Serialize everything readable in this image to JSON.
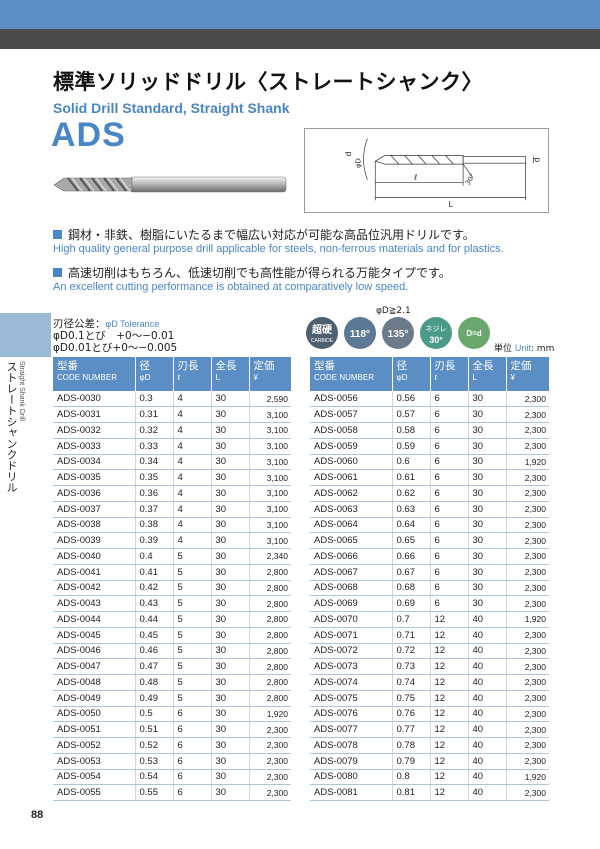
{
  "header": {
    "title_jp": "標準ソリッドドリル〈ストレートシャンク〉",
    "title_en": "Solid Drill Standard, Straight Shank",
    "code": "ADS"
  },
  "diagram": {
    "labels": [
      "d",
      "φD",
      "ℓ",
      "30°",
      "d",
      "L"
    ]
  },
  "features": [
    {
      "jp": "鋼材・非鉄、樹脂にいたるまで幅広い対応が可能な高品位汎用ドリルです。",
      "en": "High quality general purpose drill applicable for steels, non-ferrous materials and for plastics."
    },
    {
      "jp": "高速切削はもちろん、低速切削でも高性能が得られる万能タイプです。",
      "en": "An excellent cutting performance is obtained at comparatively low speed."
    }
  ],
  "tolerance": {
    "label_jp": "刃径公差：",
    "label_en": "φD Tolerance",
    "line1": "φD0.1とび　+0〜−0.01",
    "line2": "φD0.01とび+0〜−0.005"
  },
  "condition": "φD≧2.1",
  "badges": [
    "超硬",
    "CARBIDE",
    "118°",
    "135°",
    "ネジレ",
    "30°",
    "D=d"
  ],
  "unit": {
    "jp": "単位",
    "en": "Unit",
    "value": ": mm"
  },
  "sidebar": {
    "jp": "ストレートシャンクドリル",
    "en": "Straight Shank Drill"
  },
  "table_headers": {
    "code_jp": "型番",
    "code_en": "CODE NUMBER",
    "dia_jp": "径",
    "dia_en": "φD",
    "flute_jp": "刃長",
    "flute_en": "ℓ",
    "length_jp": "全長",
    "length_en": "L",
    "price_jp": "定価",
    "price_en": "¥"
  },
  "table_left": [
    [
      "ADS-0030",
      "0.3",
      "4",
      "30",
      "2,590"
    ],
    [
      "ADS-0031",
      "0.31",
      "4",
      "30",
      "3,100"
    ],
    [
      "ADS-0032",
      "0.32",
      "4",
      "30",
      "3,100"
    ],
    [
      "ADS-0033",
      "0.33",
      "4",
      "30",
      "3,100"
    ],
    [
      "ADS-0034",
      "0.34",
      "4",
      "30",
      "3,100"
    ],
    [
      "ADS-0035",
      "0.35",
      "4",
      "30",
      "3,100"
    ],
    [
      "ADS-0036",
      "0.36",
      "4",
      "30",
      "3,100"
    ],
    [
      "ADS-0037",
      "0.37",
      "4",
      "30",
      "3,100"
    ],
    [
      "ADS-0038",
      "0.38",
      "4",
      "30",
      "3,100"
    ],
    [
      "ADS-0039",
      "0.39",
      "4",
      "30",
      "3,100"
    ],
    [
      "ADS-0040",
      "0.4",
      "5",
      "30",
      "2,340"
    ],
    [
      "ADS-0041",
      "0.41",
      "5",
      "30",
      "2,800"
    ],
    [
      "ADS-0042",
      "0.42",
      "5",
      "30",
      "2,800"
    ],
    [
      "ADS-0043",
      "0.43",
      "5",
      "30",
      "2,800"
    ],
    [
      "ADS-0044",
      "0.44",
      "5",
      "30",
      "2,800"
    ],
    [
      "ADS-0045",
      "0.45",
      "5",
      "30",
      "2,800"
    ],
    [
      "ADS-0046",
      "0.46",
      "5",
      "30",
      "2,800"
    ],
    [
      "ADS-0047",
      "0.47",
      "5",
      "30",
      "2,800"
    ],
    [
      "ADS-0048",
      "0.48",
      "5",
      "30",
      "2,800"
    ],
    [
      "ADS-0049",
      "0.49",
      "5",
      "30",
      "2,800"
    ],
    [
      "ADS-0050",
      "0.5",
      "6",
      "30",
      "1,920"
    ],
    [
      "ADS-0051",
      "0.51",
      "6",
      "30",
      "2,300"
    ],
    [
      "ADS-0052",
      "0.52",
      "6",
      "30",
      "2,300"
    ],
    [
      "ADS-0053",
      "0.53",
      "6",
      "30",
      "2,300"
    ],
    [
      "ADS-0054",
      "0.54",
      "6",
      "30",
      "2,300"
    ],
    [
      "ADS-0055",
      "0.55",
      "6",
      "30",
      "2,300"
    ]
  ],
  "table_right": [
    [
      "ADS-0056",
      "0.56",
      "6",
      "30",
      "2,300"
    ],
    [
      "ADS-0057",
      "0.57",
      "6",
      "30",
      "2,300"
    ],
    [
      "ADS-0058",
      "0.58",
      "6",
      "30",
      "2,300"
    ],
    [
      "ADS-0059",
      "0.59",
      "6",
      "30",
      "2,300"
    ],
    [
      "ADS-0060",
      "0.6",
      "6",
      "30",
      "1,920"
    ],
    [
      "ADS-0061",
      "0.61",
      "6",
      "30",
      "2,300"
    ],
    [
      "ADS-0062",
      "0.62",
      "6",
      "30",
      "2,300"
    ],
    [
      "ADS-0063",
      "0.63",
      "6",
      "30",
      "2,300"
    ],
    [
      "ADS-0064",
      "0.64",
      "6",
      "30",
      "2,300"
    ],
    [
      "ADS-0065",
      "0.65",
      "6",
      "30",
      "2,300"
    ],
    [
      "ADS-0066",
      "0.66",
      "6",
      "30",
      "2,300"
    ],
    [
      "ADS-0067",
      "0.67",
      "6",
      "30",
      "2,300"
    ],
    [
      "ADS-0068",
      "0.68",
      "6",
      "30",
      "2,300"
    ],
    [
      "ADS-0069",
      "0.69",
      "6",
      "30",
      "2,300"
    ],
    [
      "ADS-0070",
      "0.7",
      "12",
      "40",
      "1,920"
    ],
    [
      "ADS-0071",
      "0.71",
      "12",
      "40",
      "2,300"
    ],
    [
      "ADS-0072",
      "0.72",
      "12",
      "40",
      "2,300"
    ],
    [
      "ADS-0073",
      "0.73",
      "12",
      "40",
      "2,300"
    ],
    [
      "ADS-0074",
      "0.74",
      "12",
      "40",
      "2,300"
    ],
    [
      "ADS-0075",
      "0.75",
      "12",
      "40",
      "2,300"
    ],
    [
      "ADS-0076",
      "0.76",
      "12",
      "40",
      "2,300"
    ],
    [
      "ADS-0077",
      "0.77",
      "12",
      "40",
      "2,300"
    ],
    [
      "ADS-0078",
      "0.78",
      "12",
      "40",
      "2,300"
    ],
    [
      "ADS-0079",
      "0.79",
      "12",
      "40",
      "2,300"
    ],
    [
      "ADS-0080",
      "0.8",
      "12",
      "40",
      "1,920"
    ],
    [
      "ADS-0081",
      "0.81",
      "12",
      "40",
      "2,300"
    ]
  ],
  "page_number": "88",
  "colors": {
    "accent": "#4a86c6",
    "header_bar": "#5b8ec4",
    "dark_bar": "#4a4a4a",
    "side_tab": "#9bbad6"
  }
}
